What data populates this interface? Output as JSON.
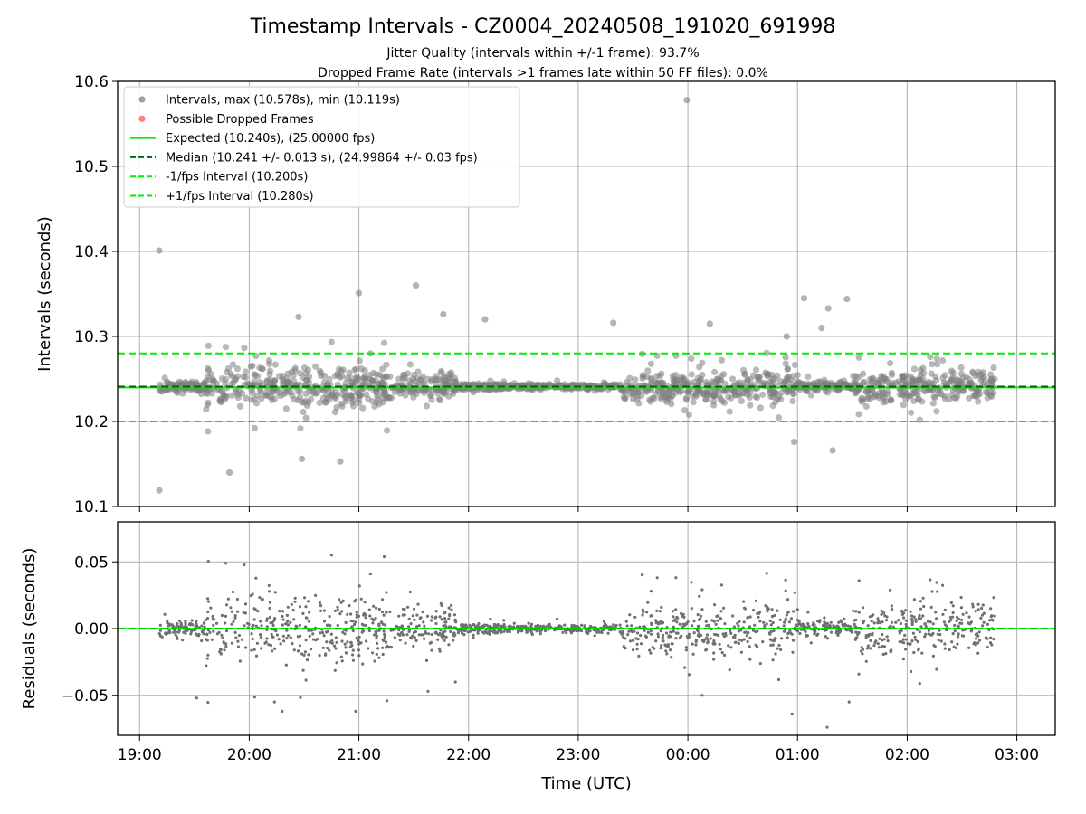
{
  "chart_data": [
    {
      "type": "scatter",
      "title": "Timestamp Intervals - CZ0004_20240508_191020_691998",
      "subtitle_lines": [
        "Jitter Quality (intervals within +/-1 frame): 93.7%",
        "Dropped Frame Rate (intervals >1 frames late within 50 FF files): 0.0%"
      ],
      "ylabel": "Intervals (seconds)",
      "xlabel": "Time (UTC)",
      "x_range_hours": [
        18.8,
        27.35
      ],
      "ylim": [
        10.1,
        10.6
      ],
      "yticks": [
        10.1,
        10.2,
        10.3,
        10.4,
        10.5,
        10.6
      ],
      "ytick_labels": [
        "10.1",
        "10.2",
        "10.3",
        "10.4",
        "10.5",
        "10.6"
      ],
      "grid": true,
      "legend_location": "upper-left",
      "legend": [
        {
          "label": "Intervals, max (10.578s), min (10.119s)",
          "kind": "marker",
          "color": "#808080"
        },
        {
          "label": "Possible Dropped Frames",
          "kind": "marker",
          "color": "#ff5555"
        },
        {
          "label": "Expected (10.240s), (25.00000 fps)",
          "kind": "solid",
          "color": "#00ee00"
        },
        {
          "label": "Median (10.241 +/- 0.013 s), (24.99864 +/- 0.03 fps)",
          "kind": "dashed",
          "color": "#006400"
        },
        {
          "label": "-1/fps Interval (10.200s)",
          "kind": "dashed",
          "color": "#00ee00"
        },
        {
          "label": "+1/fps Interval (10.280s)",
          "kind": "dashed",
          "color": "#00ee00"
        }
      ],
      "reference_lines": {
        "expected": 10.24,
        "median": 10.241,
        "minus_one_frame": 10.2,
        "plus_one_frame": 10.28
      },
      "series": [
        {
          "name": "Intervals, max (10.578s), min (10.119s)",
          "max": 10.578,
          "min": 10.119,
          "outlier_points": [
            [
              19.18,
              10.401
            ],
            [
              19.18,
              10.119
            ],
            [
              23.99,
              10.578
            ],
            [
              19.82,
              10.14
            ],
            [
              20.83,
              10.153
            ],
            [
              21.52,
              10.36
            ],
            [
              20.48,
              10.156
            ],
            [
              21.0,
              10.351
            ],
            [
              22.15,
              10.32
            ],
            [
              25.06,
              10.345
            ],
            [
              25.28,
              10.333
            ],
            [
              25.45,
              10.344
            ],
            [
              25.32,
              10.166
            ],
            [
              24.2,
              10.315
            ],
            [
              23.32,
              10.316
            ],
            [
              24.9,
              10.3
            ],
            [
              25.22,
              10.31
            ],
            [
              20.45,
              10.323
            ],
            [
              21.77,
              10.326
            ],
            [
              24.97,
              10.176
            ]
          ],
          "core_density": [
            {
              "from": 19.18,
              "to": 19.6,
              "spread": 0.01
            },
            {
              "from": 19.6,
              "to": 21.3,
              "spread": 0.045
            },
            {
              "from": 21.3,
              "to": 21.9,
              "spread": 0.025
            },
            {
              "from": 21.9,
              "to": 23.4,
              "spread": 0.006
            },
            {
              "from": 23.4,
              "to": 25.0,
              "spread": 0.035
            },
            {
              "from": 25.0,
              "to": 25.5,
              "spread": 0.01
            },
            {
              "from": 25.5,
              "to": 26.8,
              "spread": 0.035
            }
          ]
        }
      ]
    },
    {
      "type": "scatter",
      "ylabel": "Residuals (seconds)",
      "xlabel": "Time (UTC)",
      "ylim": [
        -0.08,
        0.08
      ],
      "yticks": [
        -0.05,
        0.0,
        0.05
      ],
      "ytick_labels": [
        "−0.05",
        "0.00",
        "0.05"
      ],
      "xticks": [
        19,
        20,
        21,
        22,
        23,
        24,
        25,
        26,
        27
      ],
      "xtick_labels": [
        "19:00",
        "20:00",
        "21:00",
        "22:00",
        "23:00",
        "00:00",
        "01:00",
        "02:00",
        "03:00"
      ],
      "grid": true,
      "zero_line_color": "#00ee00",
      "series": [
        {
          "name": "Residuals",
          "color": "#707070",
          "outlier_points": [
            [
              20.3,
              -0.062
            ],
            [
              20.97,
              -0.062
            ],
            [
              21.63,
              -0.047
            ],
            [
              21.88,
              -0.04
            ],
            [
              24.95,
              -0.064
            ],
            [
              25.27,
              -0.074
            ],
            [
              25.47,
              -0.055
            ],
            [
              24.13,
              -0.05
            ],
            [
              20.23,
              -0.055
            ],
            [
              19.52,
              -0.052
            ]
          ]
        }
      ]
    }
  ]
}
